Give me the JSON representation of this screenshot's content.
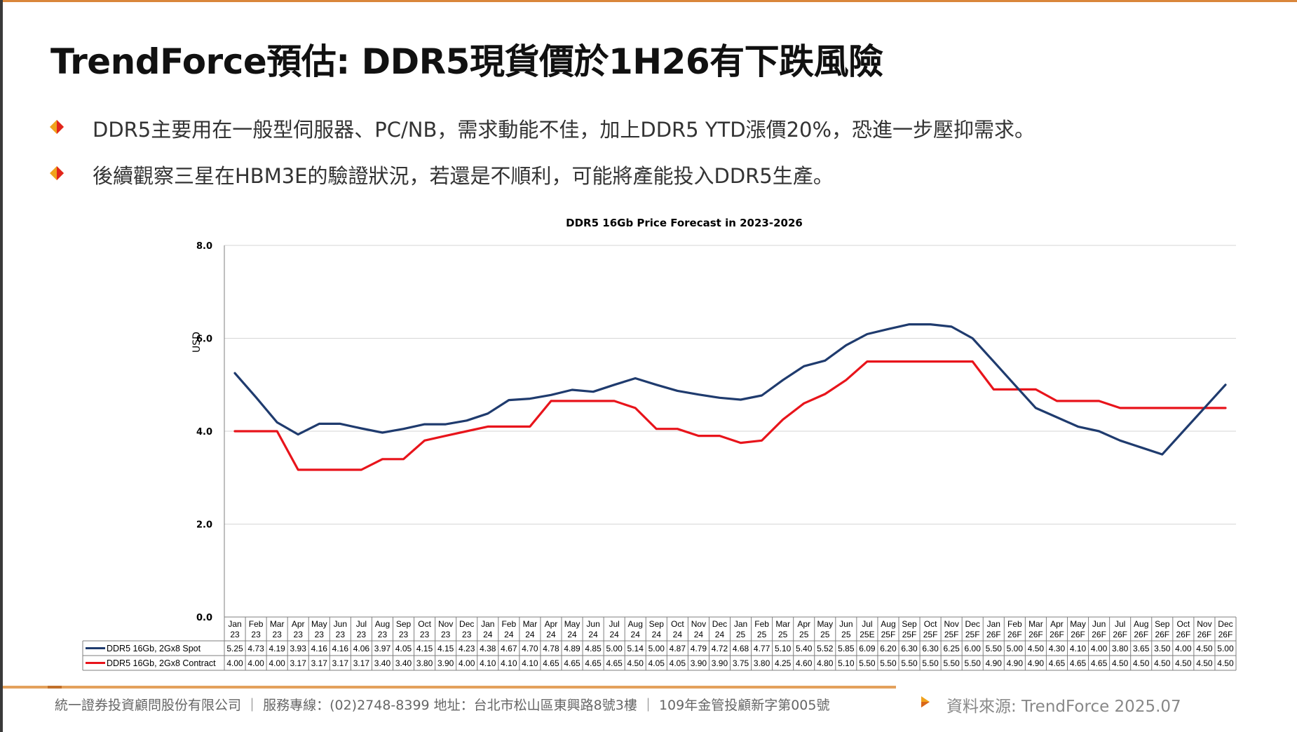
{
  "slide": {
    "title": "TrendForce預估: DDR5現貨價於1H26有下跌風險",
    "bullets": [
      "DDR5主要用在一般型伺服器、PC/NB，需求動能不佳，加上DDR5 YTD漲價20%，恐進一步壓抑需求。",
      "後續觀察三星在HBM3E的驗證狀況，若還是不順利，可能將產能投入DDR5生產。"
    ],
    "footer": "統一證券投資顧問股份有限公司 ｜ 服務專線：(02)2748-8399 地址：台北市松山區東興路8號3樓 ｜ 109年金管投顧新字第005號",
    "source": "資料來源: TrendForce 2025.07"
  },
  "chart_data": {
    "type": "line",
    "title": "DDR5 16Gb Price Forecast in 2023-2026",
    "ylabel": "USD",
    "xlabel": "",
    "ylim": [
      0,
      8
    ],
    "yticks": [
      "0.0",
      "2.0",
      "4.0",
      "6.0",
      "8.0"
    ],
    "grid": true,
    "legend": "bottom-table",
    "categories": [
      [
        "Jan",
        "23"
      ],
      [
        "Feb",
        "23"
      ],
      [
        "Mar",
        "23"
      ],
      [
        "Apr",
        "23"
      ],
      [
        "May",
        "23"
      ],
      [
        "Jun",
        "23"
      ],
      [
        "Jul",
        "23"
      ],
      [
        "Aug",
        "23"
      ],
      [
        "Sep",
        "23"
      ],
      [
        "Oct",
        "23"
      ],
      [
        "Nov",
        "23"
      ],
      [
        "Dec",
        "23"
      ],
      [
        "Jan",
        "24"
      ],
      [
        "Feb",
        "24"
      ],
      [
        "Mar",
        "24"
      ],
      [
        "Apr",
        "24"
      ],
      [
        "May",
        "24"
      ],
      [
        "Jun",
        "24"
      ],
      [
        "Jul",
        "24"
      ],
      [
        "Aug",
        "24"
      ],
      [
        "Sep",
        "24"
      ],
      [
        "Oct",
        "24"
      ],
      [
        "Nov",
        "24"
      ],
      [
        "Dec",
        "24"
      ],
      [
        "Jan",
        "25"
      ],
      [
        "Feb",
        "25"
      ],
      [
        "Mar",
        "25"
      ],
      [
        "Apr",
        "25"
      ],
      [
        "May",
        "25"
      ],
      [
        "Jun",
        "25"
      ],
      [
        "Jul",
        "25E"
      ],
      [
        "Aug",
        "25F"
      ],
      [
        "Sep",
        "25F"
      ],
      [
        "Oct",
        "25F"
      ],
      [
        "Nov",
        "25F"
      ],
      [
        "Dec",
        "25F"
      ],
      [
        "Jan",
        "26F"
      ],
      [
        "Feb",
        "26F"
      ],
      [
        "Mar",
        "26F"
      ],
      [
        "Apr",
        "26F"
      ],
      [
        "May",
        "26F"
      ],
      [
        "Jun",
        "26F"
      ],
      [
        "Jul",
        "26F"
      ],
      [
        "Aug",
        "26F"
      ],
      [
        "Sep",
        "26F"
      ],
      [
        "Oct",
        "26F"
      ],
      [
        "Nov",
        "26F"
      ],
      [
        "Dec",
        "26F"
      ]
    ],
    "series": [
      {
        "name": "DDR5 16Gb, 2Gx8 Spot",
        "color": "#1f3b6e",
        "values": [
          5.25,
          4.73,
          4.19,
          3.93,
          4.16,
          4.16,
          4.06,
          3.97,
          4.05,
          4.15,
          4.15,
          4.23,
          4.38,
          4.67,
          4.7,
          4.78,
          4.89,
          4.85,
          5.0,
          5.14,
          5.0,
          4.87,
          4.79,
          4.72,
          4.68,
          4.77,
          5.1,
          5.4,
          5.52,
          5.85,
          6.09,
          6.2,
          6.3,
          6.3,
          6.25,
          6.0,
          5.5,
          5.0,
          4.5,
          4.3,
          4.1,
          4.0,
          3.8,
          3.65,
          3.5,
          4.0,
          4.5,
          5.0
        ]
      },
      {
        "name": "DDR5 16Gb, 2Gx8 Contract",
        "color": "#e8141b",
        "values": [
          4.0,
          4.0,
          4.0,
          3.17,
          3.17,
          3.17,
          3.17,
          3.4,
          3.4,
          3.8,
          3.9,
          4.0,
          4.1,
          4.1,
          4.1,
          4.65,
          4.65,
          4.65,
          4.65,
          4.5,
          4.05,
          4.05,
          3.9,
          3.9,
          3.75,
          3.8,
          4.25,
          4.6,
          4.8,
          5.1,
          5.5,
          5.5,
          5.5,
          5.5,
          5.5,
          5.5,
          4.9,
          4.9,
          4.9,
          4.65,
          4.65,
          4.65,
          4.5,
          4.5,
          4.5,
          4.5,
          4.5,
          4.5
        ]
      }
    ]
  }
}
